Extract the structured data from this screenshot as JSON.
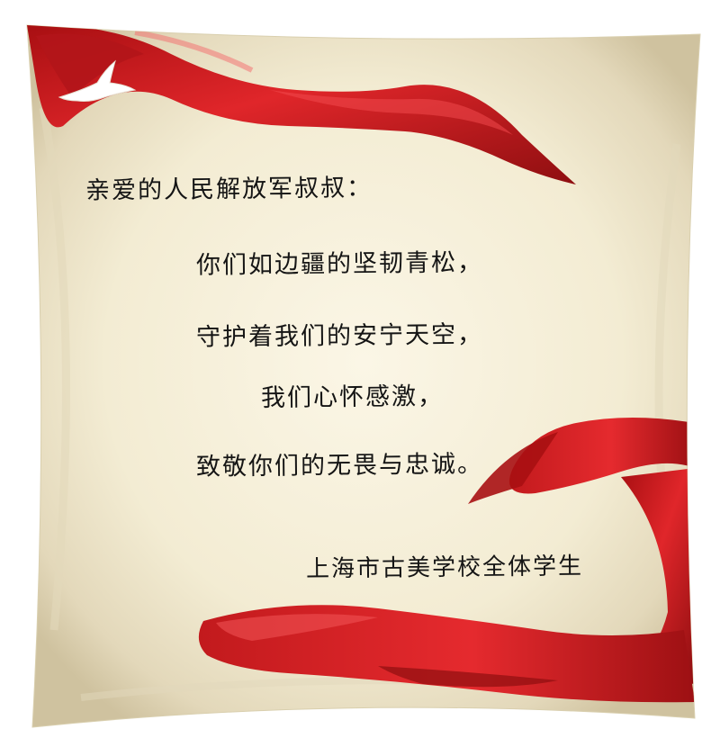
{
  "letter": {
    "salutation": "亲爱的人民解放军叔叔：",
    "verses": [
      "你们如边疆的坚韧青松，",
      "守护着我们的安宁天空，",
      "我们心怀感激，",
      "致敬你们的无畏与忠诚。"
    ],
    "signature": "上海市古美学校全体学生"
  },
  "colors": {
    "pillow_base": "#f5efd8",
    "ribbon_red": "#d41f22",
    "ribbon_dark": "#8e0e10",
    "text": "#151515"
  }
}
